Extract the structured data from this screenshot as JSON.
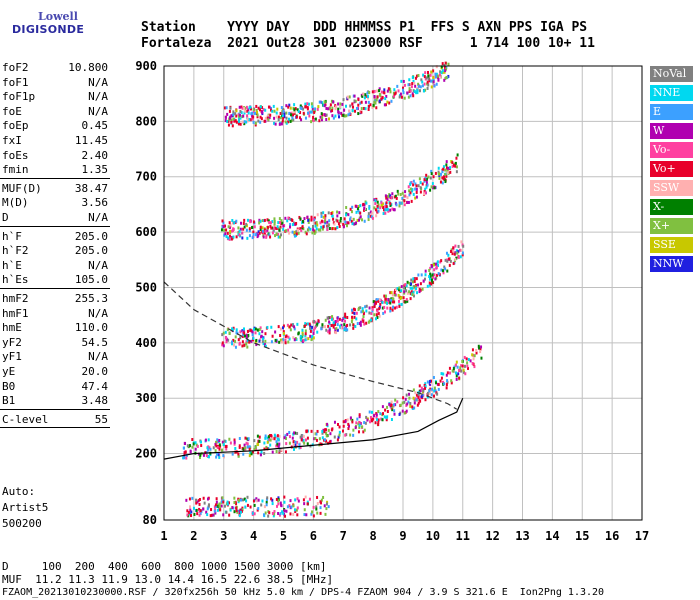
{
  "logo": {
    "line1": "Lowell",
    "line2": "DIGISONDE"
  },
  "header": {
    "row1": "Station    YYYY DAY   DDD HHMMSS P1  FFS S AXN PPS IGA PS",
    "row2": "Fortaleza  2021 Out28 301 023000 RSF      1 714 100 10+ 11"
  },
  "params": [
    {
      "name": "foF2",
      "value": "10.800"
    },
    {
      "name": "foF1",
      "value": "N/A"
    },
    {
      "name": "foF1p",
      "value": "N/A"
    },
    {
      "name": "foE",
      "value": "N/A"
    },
    {
      "name": "foEp",
      "value": "0.45"
    },
    {
      "name": "fxI",
      "value": "11.45"
    },
    {
      "name": "foEs",
      "value": "2.40"
    },
    {
      "name": "fmin",
      "value": "1.35"
    },
    {
      "name": "MUF(D)",
      "value": "38.47"
    },
    {
      "name": "M(D)",
      "value": "3.56"
    },
    {
      "name": "D",
      "value": "N/A"
    },
    {
      "name": "h`F",
      "value": "205.0"
    },
    {
      "name": "h`F2",
      "value": "205.0"
    },
    {
      "name": "h`E",
      "value": "N/A"
    },
    {
      "name": "h`Es",
      "value": "105.0"
    },
    {
      "name": "hmF2",
      "value": "255.3"
    },
    {
      "name": "hmF1",
      "value": "N/A"
    },
    {
      "name": "hmE",
      "value": "110.0"
    },
    {
      "name": "yF2",
      "value": "54.5"
    },
    {
      "name": "yF1",
      "value": "N/A"
    },
    {
      "name": "yE",
      "value": "20.0"
    },
    {
      "name": "B0",
      "value": "47.4"
    },
    {
      "name": "B1",
      "value": "3.48"
    },
    {
      "name": "C-level",
      "value": "55"
    }
  ],
  "auto": {
    "line1": "Auto:",
    "line2": "Artist5",
    "line3": "500200"
  },
  "legend": [
    {
      "label": "NoVal",
      "color": "#808080"
    },
    {
      "label": "NNE",
      "color": "#00d8f0"
    },
    {
      "label": "E",
      "color": "#3ca0ff"
    },
    {
      "label": "W",
      "color": "#b000b0"
    },
    {
      "label": "Vo-",
      "color": "#ff40a0"
    },
    {
      "label": "Vo+",
      "color": "#e8002a"
    },
    {
      "label": "SSW",
      "color": "#ffb0b0"
    },
    {
      "label": "X-",
      "color": "#008000"
    },
    {
      "label": "X+",
      "color": "#80c040"
    },
    {
      "label": "SSE",
      "color": "#c8c800"
    },
    {
      "label": "NNW",
      "color": "#2020e0"
    }
  ],
  "footer": {
    "d_row": "D     100  200  400  600  800 1000 1500 3000 [km]",
    "muf_row": "MUF  11.2 11.3 11.9 13.0 14.4 16.5 22.6 38.5 [MHz]",
    "info_row": "FZAOM_20213010230000.RSF / 320fx256h 50 kHz 5.0 km / DPS-4 FZAOM 904 / 3.9 S 321.6 E  Ion2Png 1.3.20"
  },
  "chart_data": {
    "type": "scatter",
    "xlim": [
      1,
      17
    ],
    "ylim": [
      80,
      900
    ],
    "x_ticks": [
      "1",
      "2",
      "3",
      "4",
      "5",
      "6",
      "7",
      "8",
      "9",
      "10",
      "11",
      "12",
      "13",
      "14",
      "15",
      "16",
      "17"
    ],
    "y_ticks": [
      "80",
      "200",
      "300",
      "400",
      "500",
      "600",
      "700",
      "800",
      "900"
    ],
    "grid": true,
    "legend_position": "right",
    "traces": [
      {
        "name": "F2 O-trace",
        "x_start": 1.6,
        "x_end": 11.6,
        "h_start": 205,
        "h_end": 380,
        "asymptote": 11.0
      },
      {
        "name": "2F2 multi-hop",
        "x_start": 2.9,
        "x_end": 11.0,
        "h_start": 405,
        "h_end": 570,
        "asymptote": 11.0
      },
      {
        "name": "3F2 multi-hop",
        "x_start": 2.9,
        "x_end": 10.8,
        "h_start": 600,
        "h_end": 720,
        "asymptote": 11.0
      },
      {
        "name": "4F2 multi-hop",
        "x_start": 3.0,
        "x_end": 10.5,
        "h_start": 805,
        "h_end": 890,
        "asymptote": 11.0
      },
      {
        "name": "Es layer",
        "x_start": 1.7,
        "x_end": 6.5,
        "h_start": 100,
        "h_end": 100,
        "asymptote": 0
      }
    ],
    "profile": {
      "x": [
        1.0,
        2.0,
        4.0,
        6.0,
        8.0,
        9.5,
        10.5,
        10.8
      ],
      "h": [
        510,
        460,
        400,
        360,
        330,
        310,
        290,
        280
      ]
    },
    "muf_curve": {
      "x": [
        1.0,
        2.0,
        4.0,
        6.0,
        8.0,
        9.5,
        10.2,
        10.8,
        11.0
      ],
      "h": [
        190,
        200,
        205,
        215,
        225,
        240,
        260,
        275,
        300
      ]
    }
  }
}
